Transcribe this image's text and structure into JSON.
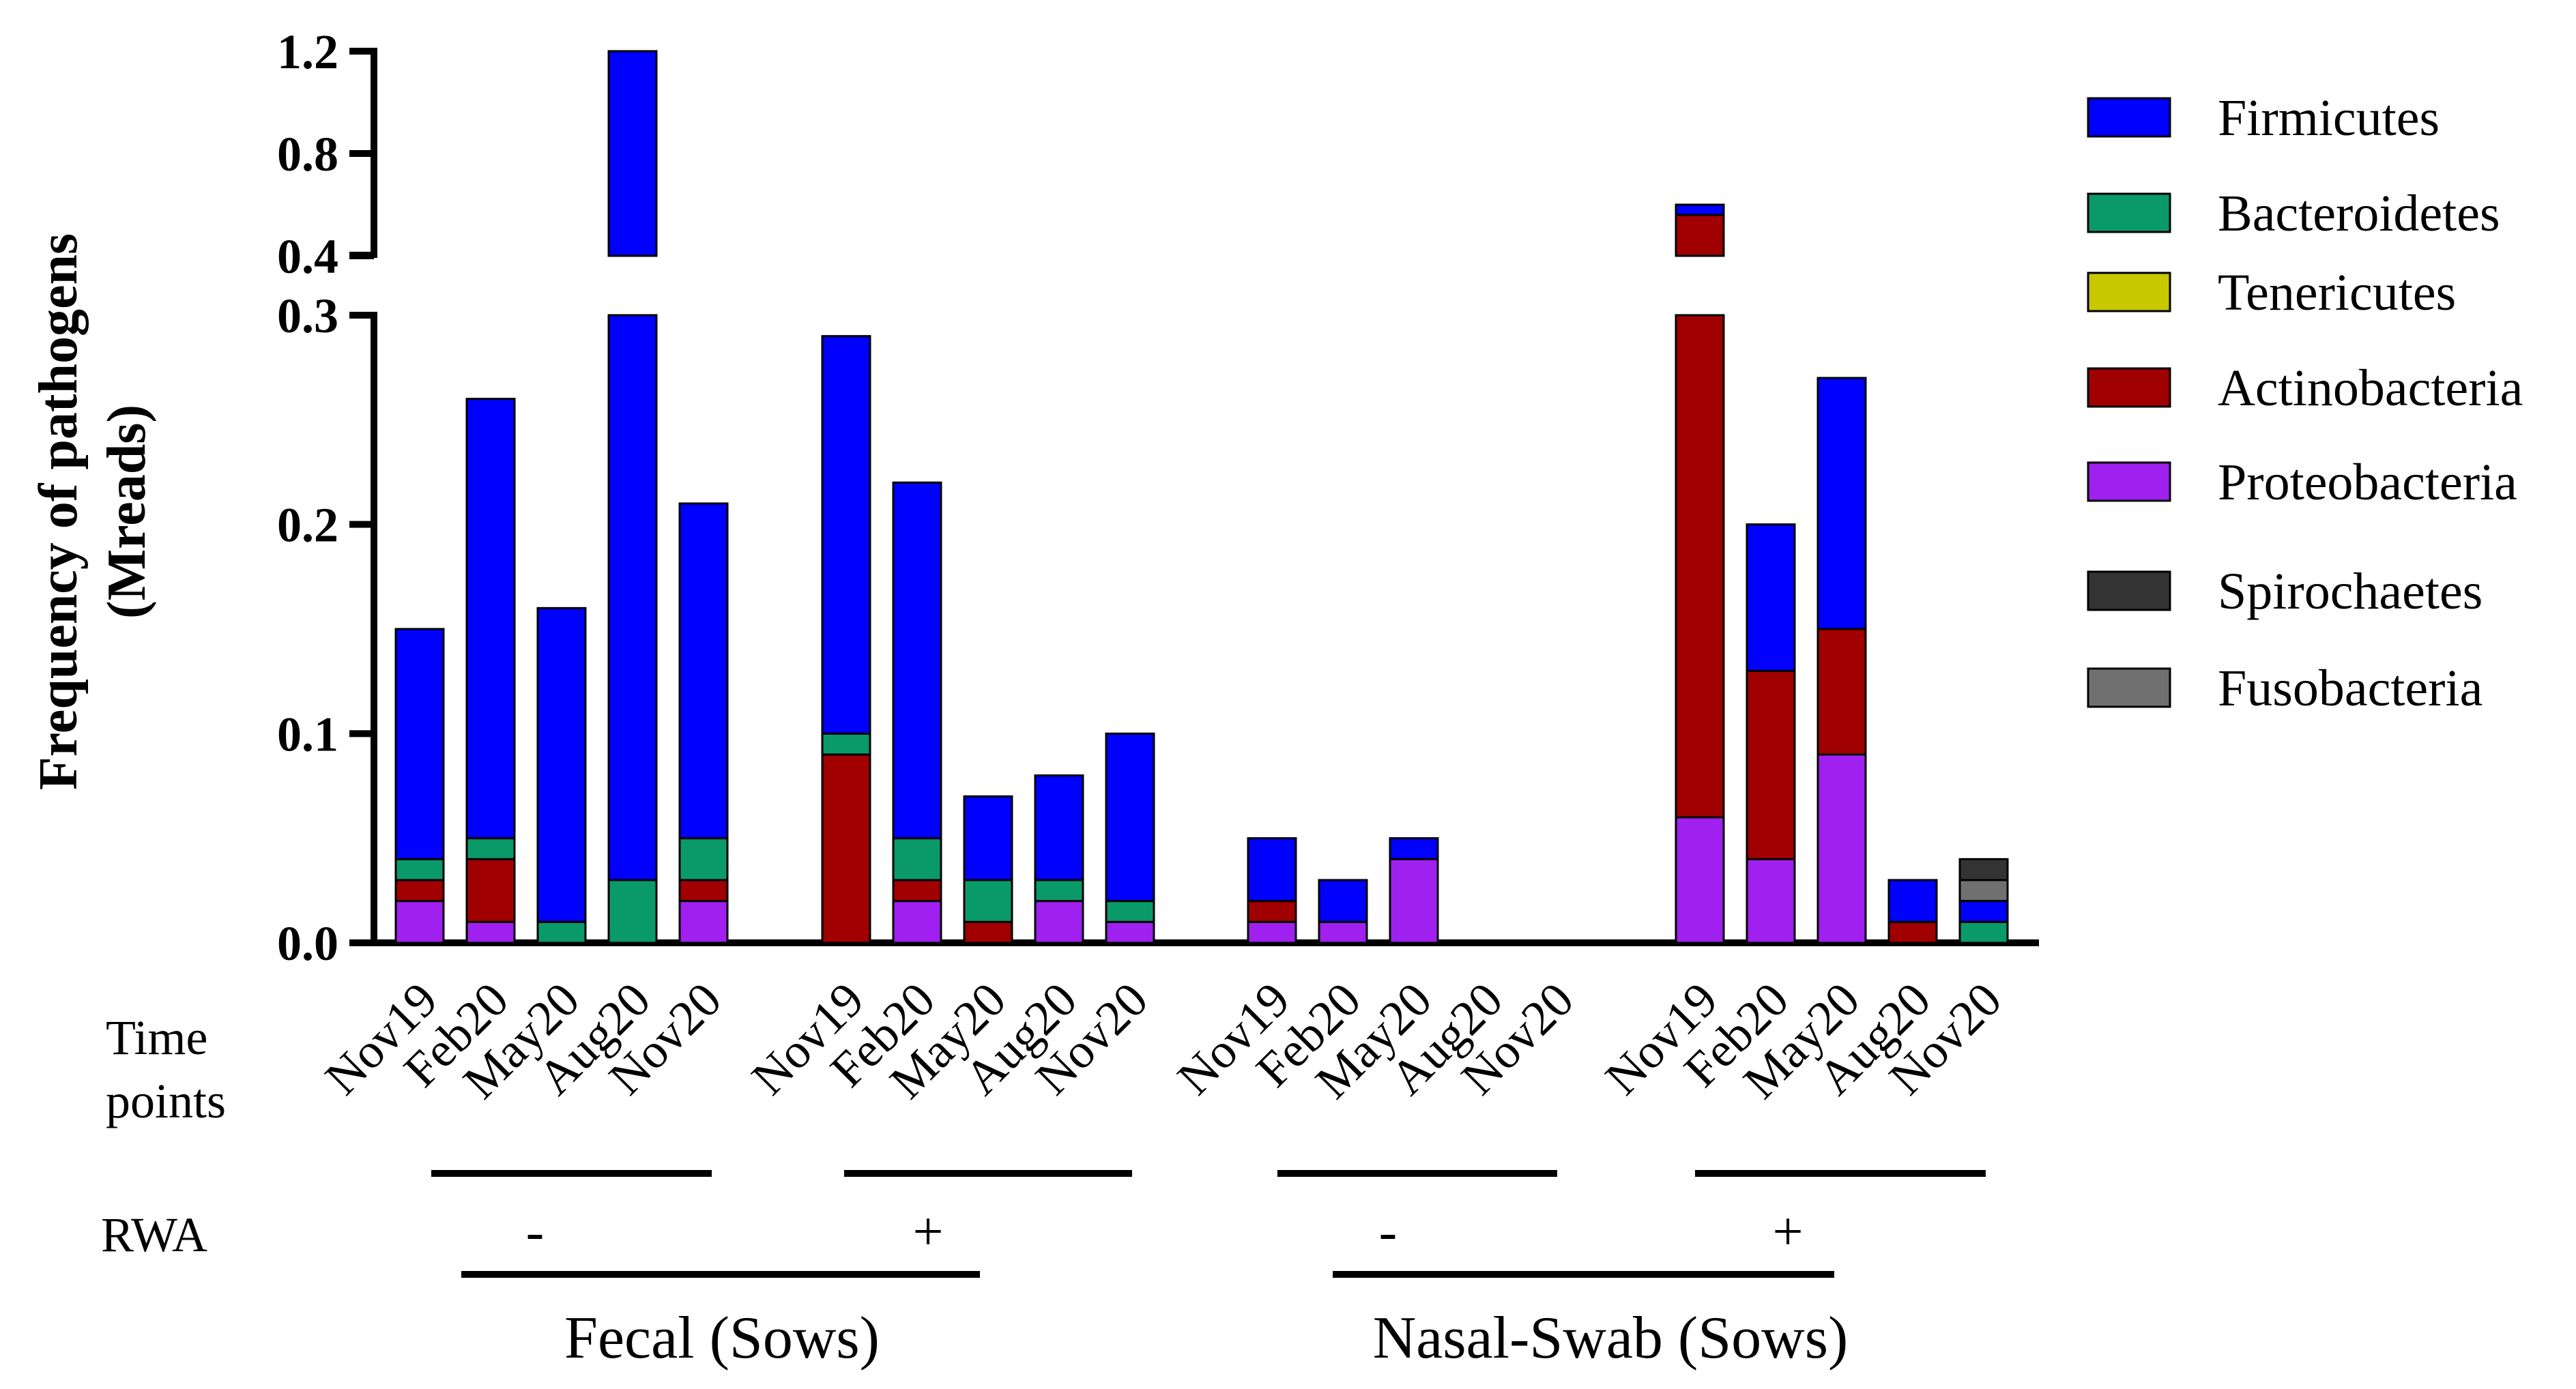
{
  "chart_data": {
    "type": "bar",
    "stacked": true,
    "ylabel_line1": "Frequency of  pathogens",
    "ylabel_line2": "(Mreads)",
    "y_ticks_lower": [
      "0.0",
      "0.1",
      "0.2",
      "0.3"
    ],
    "y_ticks_upper": [
      "0.4",
      "0.8",
      "1.2"
    ],
    "ylim_lower": [
      0,
      0.3
    ],
    "ylim_upper": [
      0.4,
      1.2
    ],
    "series": [
      {
        "name": "Proteobacteria",
        "color": "#a020f0"
      },
      {
        "name": "Actinobacteria",
        "color": "#a00000"
      },
      {
        "name": "Tenericutes",
        "color": "#c8c800"
      },
      {
        "name": "Bacteroidetes",
        "color": "#0a9a6a"
      },
      {
        "name": "Firmicutes",
        "color": "#0000ff"
      },
      {
        "name": "Fusobacteria",
        "color": "#707070"
      },
      {
        "name": "Spirochaetes",
        "color": "#333333"
      }
    ],
    "legend": [
      {
        "name": "Firmicutes",
        "color": "#0000ff"
      },
      {
        "name": "Bacteroidetes",
        "color": "#0a9a6a"
      },
      {
        "name": "Tenericutes",
        "color": "#c8c800"
      },
      {
        "name": "Actinobacteria",
        "color": "#a00000"
      },
      {
        "name": "Proteobacteria",
        "color": "#a020f0"
      },
      {
        "name": "Spirochaetes",
        "color": "#333333"
      },
      {
        "name": "Fusobacteria",
        "color": "#707070"
      }
    ],
    "time_points_label_line1": "Time",
    "time_points_label_line2": "points",
    "rwa_label": "RWA",
    "groups": [
      {
        "sample": "Fecal (Sows)",
        "rwa": "-",
        "bars": [
          {
            "label": "Nov19",
            "values": {
              "Proteobacteria": 0.02,
              "Actinobacteria": 0.01,
              "Bacteroidetes": 0.01,
              "Firmicutes": 0.11
            }
          },
          {
            "label": "Feb20",
            "values": {
              "Proteobacteria": 0.01,
              "Actinobacteria": 0.03,
              "Bacteroidetes": 0.01,
              "Firmicutes": 0.21
            }
          },
          {
            "label": "May20",
            "values": {
              "Bacteroidetes": 0.01,
              "Firmicutes": 0.15
            }
          },
          {
            "label": "Aug20",
            "values": {
              "Bacteroidetes": 0.03,
              "Firmicutes": 1.17
            }
          },
          {
            "label": "Nov20",
            "values": {
              "Proteobacteria": 0.02,
              "Actinobacteria": 0.01,
              "Bacteroidetes": 0.02,
              "Firmicutes": 0.16
            }
          }
        ]
      },
      {
        "sample": "Fecal (Sows)",
        "rwa": "+",
        "bars": [
          {
            "label": "Nov19",
            "values": {
              "Actinobacteria": 0.09,
              "Bacteroidetes": 0.01,
              "Firmicutes": 0.19
            }
          },
          {
            "label": "Feb20",
            "values": {
              "Proteobacteria": 0.02,
              "Actinobacteria": 0.01,
              "Bacteroidetes": 0.02,
              "Firmicutes": 0.17
            }
          },
          {
            "label": "May20",
            "values": {
              "Actinobacteria": 0.01,
              "Bacteroidetes": 0.02,
              "Firmicutes": 0.04
            }
          },
          {
            "label": "Aug20",
            "values": {
              "Proteobacteria": 0.02,
              "Bacteroidetes": 0.01,
              "Firmicutes": 0.05
            }
          },
          {
            "label": "Nov20",
            "values": {
              "Proteobacteria": 0.01,
              "Bacteroidetes": 0.01,
              "Firmicutes": 0.08
            }
          }
        ]
      },
      {
        "sample": "Nasal-Swab (Sows)",
        "rwa": "-",
        "bars": [
          {
            "label": "Nov19",
            "values": {
              "Proteobacteria": 0.01,
              "Actinobacteria": 0.01,
              "Firmicutes": 0.03
            }
          },
          {
            "label": "Feb20",
            "values": {
              "Proteobacteria": 0.01,
              "Firmicutes": 0.02
            }
          },
          {
            "label": "May20",
            "values": {
              "Proteobacteria": 0.04,
              "Firmicutes": 0.01
            }
          },
          {
            "label": "Aug20",
            "values": {}
          },
          {
            "label": "Nov20",
            "values": {}
          }
        ]
      },
      {
        "sample": "Nasal-Swab (Sows)",
        "rwa": "+",
        "bars": [
          {
            "label": "Nov19",
            "values": {
              "Proteobacteria": 0.06,
              "Actinobacteria": 0.5,
              "Firmicutes": 0.04
            }
          },
          {
            "label": "Feb20",
            "values": {
              "Proteobacteria": 0.04,
              "Actinobacteria": 0.09,
              "Firmicutes": 0.07
            }
          },
          {
            "label": "May20",
            "values": {
              "Proteobacteria": 0.09,
              "Actinobacteria": 0.06,
              "Firmicutes": 0.12
            }
          },
          {
            "label": "Aug20",
            "values": {
              "Actinobacteria": 0.01,
              "Firmicutes": 0.02
            }
          },
          {
            "label": "Nov20",
            "values": {
              "Fusobacteria": 0.01,
              "Spirochaetes": 0.01,
              "Bacteroidetes": 0.01,
              "Firmicutes": 0.01
            }
          }
        ]
      }
    ],
    "sample_labels": [
      "Fecal (Sows)",
      "Nasal-Swab (Sows)"
    ]
  }
}
